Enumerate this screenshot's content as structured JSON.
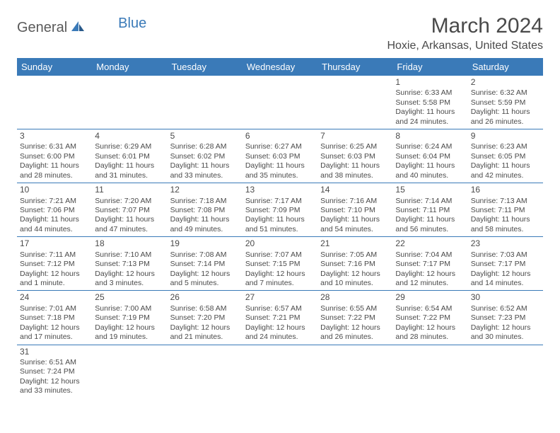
{
  "logo": {
    "part1": "General",
    "part2": "Blue"
  },
  "title": "March 2024",
  "location": "Hoxie, Arkansas, United States",
  "colors": {
    "header_bg": "#3a7ab8",
    "header_fg": "#ffffff",
    "border": "#3a7ab8",
    "text": "#4a4a4a"
  },
  "dayHeaders": [
    "Sunday",
    "Monday",
    "Tuesday",
    "Wednesday",
    "Thursday",
    "Friday",
    "Saturday"
  ],
  "weeks": [
    [
      null,
      null,
      null,
      null,
      null,
      {
        "n": "1",
        "sr": "Sunrise: 6:33 AM",
        "ss": "Sunset: 5:58 PM",
        "d1": "Daylight: 11 hours",
        "d2": "and 24 minutes."
      },
      {
        "n": "2",
        "sr": "Sunrise: 6:32 AM",
        "ss": "Sunset: 5:59 PM",
        "d1": "Daylight: 11 hours",
        "d2": "and 26 minutes."
      }
    ],
    [
      {
        "n": "3",
        "sr": "Sunrise: 6:31 AM",
        "ss": "Sunset: 6:00 PM",
        "d1": "Daylight: 11 hours",
        "d2": "and 28 minutes."
      },
      {
        "n": "4",
        "sr": "Sunrise: 6:29 AM",
        "ss": "Sunset: 6:01 PM",
        "d1": "Daylight: 11 hours",
        "d2": "and 31 minutes."
      },
      {
        "n": "5",
        "sr": "Sunrise: 6:28 AM",
        "ss": "Sunset: 6:02 PM",
        "d1": "Daylight: 11 hours",
        "d2": "and 33 minutes."
      },
      {
        "n": "6",
        "sr": "Sunrise: 6:27 AM",
        "ss": "Sunset: 6:03 PM",
        "d1": "Daylight: 11 hours",
        "d2": "and 35 minutes."
      },
      {
        "n": "7",
        "sr": "Sunrise: 6:25 AM",
        "ss": "Sunset: 6:03 PM",
        "d1": "Daylight: 11 hours",
        "d2": "and 38 minutes."
      },
      {
        "n": "8",
        "sr": "Sunrise: 6:24 AM",
        "ss": "Sunset: 6:04 PM",
        "d1": "Daylight: 11 hours",
        "d2": "and 40 minutes."
      },
      {
        "n": "9",
        "sr": "Sunrise: 6:23 AM",
        "ss": "Sunset: 6:05 PM",
        "d1": "Daylight: 11 hours",
        "d2": "and 42 minutes."
      }
    ],
    [
      {
        "n": "10",
        "sr": "Sunrise: 7:21 AM",
        "ss": "Sunset: 7:06 PM",
        "d1": "Daylight: 11 hours",
        "d2": "and 44 minutes."
      },
      {
        "n": "11",
        "sr": "Sunrise: 7:20 AM",
        "ss": "Sunset: 7:07 PM",
        "d1": "Daylight: 11 hours",
        "d2": "and 47 minutes."
      },
      {
        "n": "12",
        "sr": "Sunrise: 7:18 AM",
        "ss": "Sunset: 7:08 PM",
        "d1": "Daylight: 11 hours",
        "d2": "and 49 minutes."
      },
      {
        "n": "13",
        "sr": "Sunrise: 7:17 AM",
        "ss": "Sunset: 7:09 PM",
        "d1": "Daylight: 11 hours",
        "d2": "and 51 minutes."
      },
      {
        "n": "14",
        "sr": "Sunrise: 7:16 AM",
        "ss": "Sunset: 7:10 PM",
        "d1": "Daylight: 11 hours",
        "d2": "and 54 minutes."
      },
      {
        "n": "15",
        "sr": "Sunrise: 7:14 AM",
        "ss": "Sunset: 7:11 PM",
        "d1": "Daylight: 11 hours",
        "d2": "and 56 minutes."
      },
      {
        "n": "16",
        "sr": "Sunrise: 7:13 AM",
        "ss": "Sunset: 7:11 PM",
        "d1": "Daylight: 11 hours",
        "d2": "and 58 minutes."
      }
    ],
    [
      {
        "n": "17",
        "sr": "Sunrise: 7:11 AM",
        "ss": "Sunset: 7:12 PM",
        "d1": "Daylight: 12 hours",
        "d2": "and 1 minute."
      },
      {
        "n": "18",
        "sr": "Sunrise: 7:10 AM",
        "ss": "Sunset: 7:13 PM",
        "d1": "Daylight: 12 hours",
        "d2": "and 3 minutes."
      },
      {
        "n": "19",
        "sr": "Sunrise: 7:08 AM",
        "ss": "Sunset: 7:14 PM",
        "d1": "Daylight: 12 hours",
        "d2": "and 5 minutes."
      },
      {
        "n": "20",
        "sr": "Sunrise: 7:07 AM",
        "ss": "Sunset: 7:15 PM",
        "d1": "Daylight: 12 hours",
        "d2": "and 7 minutes."
      },
      {
        "n": "21",
        "sr": "Sunrise: 7:05 AM",
        "ss": "Sunset: 7:16 PM",
        "d1": "Daylight: 12 hours",
        "d2": "and 10 minutes."
      },
      {
        "n": "22",
        "sr": "Sunrise: 7:04 AM",
        "ss": "Sunset: 7:17 PM",
        "d1": "Daylight: 12 hours",
        "d2": "and 12 minutes."
      },
      {
        "n": "23",
        "sr": "Sunrise: 7:03 AM",
        "ss": "Sunset: 7:17 PM",
        "d1": "Daylight: 12 hours",
        "d2": "and 14 minutes."
      }
    ],
    [
      {
        "n": "24",
        "sr": "Sunrise: 7:01 AM",
        "ss": "Sunset: 7:18 PM",
        "d1": "Daylight: 12 hours",
        "d2": "and 17 minutes."
      },
      {
        "n": "25",
        "sr": "Sunrise: 7:00 AM",
        "ss": "Sunset: 7:19 PM",
        "d1": "Daylight: 12 hours",
        "d2": "and 19 minutes."
      },
      {
        "n": "26",
        "sr": "Sunrise: 6:58 AM",
        "ss": "Sunset: 7:20 PM",
        "d1": "Daylight: 12 hours",
        "d2": "and 21 minutes."
      },
      {
        "n": "27",
        "sr": "Sunrise: 6:57 AM",
        "ss": "Sunset: 7:21 PM",
        "d1": "Daylight: 12 hours",
        "d2": "and 24 minutes."
      },
      {
        "n": "28",
        "sr": "Sunrise: 6:55 AM",
        "ss": "Sunset: 7:22 PM",
        "d1": "Daylight: 12 hours",
        "d2": "and 26 minutes."
      },
      {
        "n": "29",
        "sr": "Sunrise: 6:54 AM",
        "ss": "Sunset: 7:22 PM",
        "d1": "Daylight: 12 hours",
        "d2": "and 28 minutes."
      },
      {
        "n": "30",
        "sr": "Sunrise: 6:52 AM",
        "ss": "Sunset: 7:23 PM",
        "d1": "Daylight: 12 hours",
        "d2": "and 30 minutes."
      }
    ],
    [
      {
        "n": "31",
        "sr": "Sunrise: 6:51 AM",
        "ss": "Sunset: 7:24 PM",
        "d1": "Daylight: 12 hours",
        "d2": "and 33 minutes."
      },
      null,
      null,
      null,
      null,
      null,
      null
    ]
  ]
}
